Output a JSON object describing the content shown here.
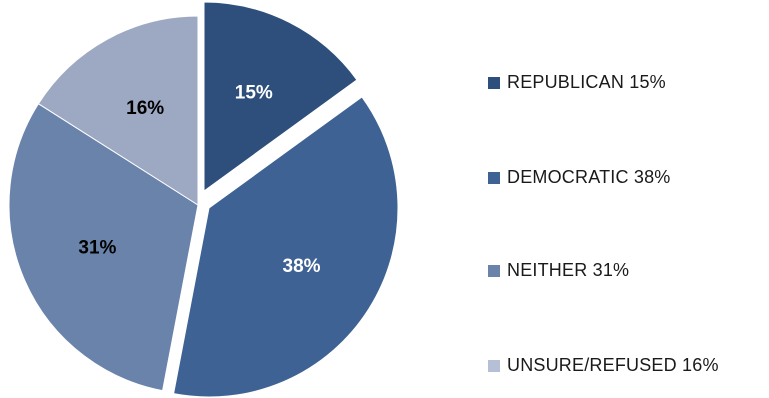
{
  "chart_data": {
    "type": "pie",
    "title": "",
    "categories": [
      "REPUBLICAN",
      "DEMOCRATIC",
      "NEITHER",
      "UNSURE/REFUSED"
    ],
    "values": [
      15,
      38,
      31,
      16
    ],
    "slice_labels": [
      "15%",
      "38%",
      "31%",
      "16%"
    ],
    "colors": [
      "#2e4f7b",
      "#3e6294",
      "#6a83ab",
      "#9da9c3"
    ],
    "label_colors": [
      "#ffffff",
      "#ffffff",
      "#000000",
      "#000000"
    ],
    "exploded": [
      "REPUBLICAN",
      "DEMOCRATIC"
    ],
    "legend": {
      "placement": "right",
      "entries": [
        "REPUBLICAN  15%",
        "DEMOCRATIC  38%",
        "NEITHER  31%",
        "UNSURE/REFUSED  16%"
      ],
      "swatch_colors": [
        "#2e4f7b",
        "#3e6294",
        "#6a83ab",
        "#b5bfd6"
      ]
    }
  }
}
